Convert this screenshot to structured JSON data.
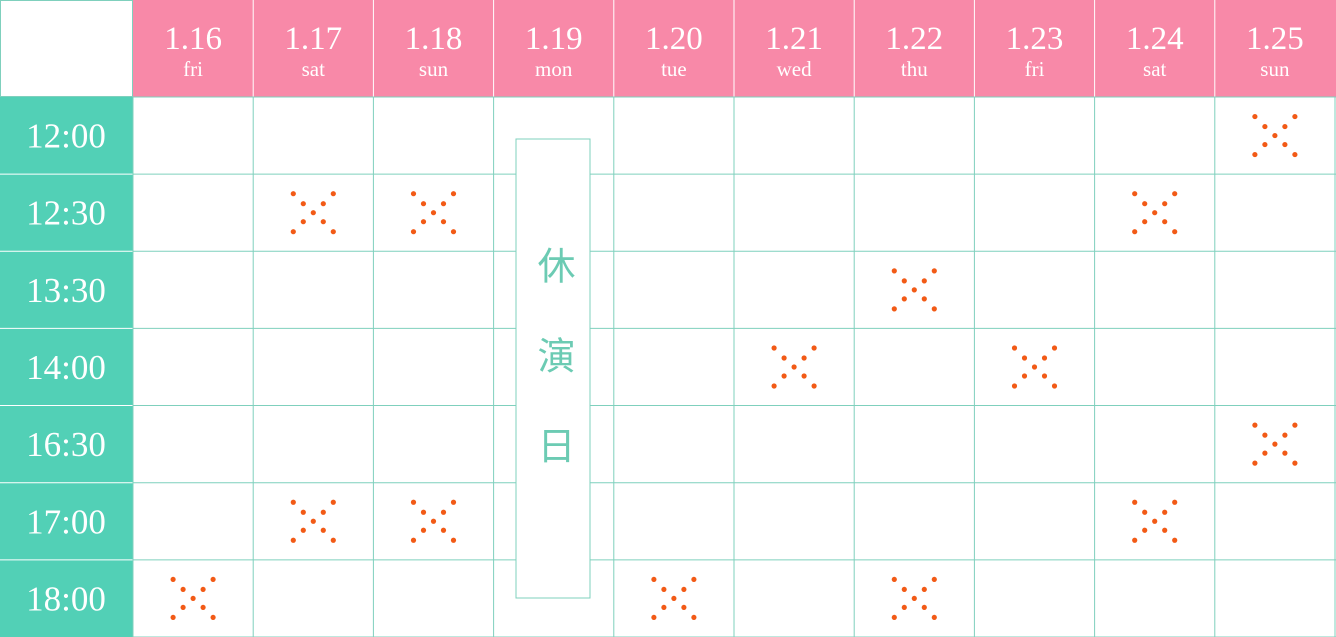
{
  "header": {
    "days": [
      {
        "date": "1.16",
        "weekday": "fri"
      },
      {
        "date": "1.17",
        "weekday": "sat"
      },
      {
        "date": "1.18",
        "weekday": "sun"
      },
      {
        "date": "1.19",
        "weekday": "mon"
      },
      {
        "date": "1.20",
        "weekday": "tue"
      },
      {
        "date": "1.21",
        "weekday": "wed"
      },
      {
        "date": "1.22",
        "weekday": "thu"
      },
      {
        "date": "1.23",
        "weekday": "fri"
      },
      {
        "date": "1.24",
        "weekday": "sat"
      },
      {
        "date": "1.25",
        "weekday": "sun"
      }
    ]
  },
  "times": [
    "12:00",
    "12:30",
    "13:30",
    "14:00",
    "16:30",
    "17:00",
    "18:00"
  ],
  "closed_day": "休演日"
}
